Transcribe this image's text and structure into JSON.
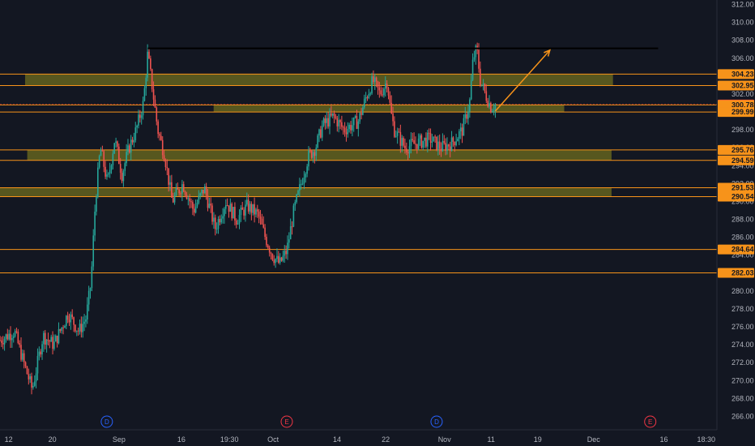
{
  "chart_data": {
    "type": "candlestick",
    "ylim": [
      264.5,
      312.5
    ],
    "y_ticks": [
      266,
      268,
      270,
      272,
      274,
      276,
      278,
      280,
      282,
      284,
      286,
      288,
      290,
      292,
      294,
      296,
      298,
      300,
      302,
      304,
      306,
      308,
      310,
      312
    ],
    "x_ticks": [
      {
        "label": "12",
        "pos": 0.012
      },
      {
        "label": "20",
        "pos": 0.073
      },
      {
        "label": "Sep",
        "pos": 0.166
      },
      {
        "label": "16",
        "pos": 0.253
      },
      {
        "label": "19:30",
        "pos": 0.32
      },
      {
        "label": "Oct",
        "pos": 0.381
      },
      {
        "label": "14",
        "pos": 0.47
      },
      {
        "label": "22",
        "pos": 0.538
      },
      {
        "label": "Nov",
        "pos": 0.62
      },
      {
        "label": "11",
        "pos": 0.685
      },
      {
        "label": "19",
        "pos": 0.75
      },
      {
        "label": "Dec",
        "pos": 0.828
      },
      {
        "label": "16",
        "pos": 0.926
      },
      {
        "label": "18:30",
        "pos": 0.985
      }
    ],
    "price_lines": [
      {
        "value": 304.23,
        "label": "304.23",
        "color": "#f7931a"
      },
      {
        "value": 302.95,
        "label": "302.95",
        "color": "#f7931a"
      },
      {
        "value": 300.83,
        "label": "300.83",
        "color": "#f23645"
      },
      {
        "value": 300.78,
        "label": "300.78",
        "color": "#f7931a"
      },
      {
        "value": 299.99,
        "label": "299.99",
        "color": "#f7931a"
      },
      {
        "value": 295.76,
        "label": "295.76",
        "color": "#f7931a"
      },
      {
        "value": 294.59,
        "label": "294.59",
        "color": "#f7931a"
      },
      {
        "value": 291.53,
        "label": "291.53",
        "color": "#f7931a"
      },
      {
        "value": 290.54,
        "label": "290.54",
        "color": "#f7931a"
      },
      {
        "value": 284.64,
        "label": "284.64",
        "color": "#f7931a"
      },
      {
        "value": 282.03,
        "label": "282.03",
        "color": "#f7931a"
      }
    ],
    "zones": [
      {
        "top": 304.23,
        "bottom": 302.95,
        "x0": 0.035,
        "x1": 0.855
      },
      {
        "top": 300.83,
        "bottom": 299.99,
        "x0": 0.298,
        "x1": 0.787
      },
      {
        "top": 295.76,
        "bottom": 294.59,
        "x0": 0.038,
        "x1": 0.853
      },
      {
        "top": 291.53,
        "bottom": 290.54,
        "x0": 0.0,
        "x1": 0.853
      }
    ],
    "resistance_line": {
      "value": 307.1,
      "x0": 0.206,
      "x1": 0.918
    },
    "projection_arrow": {
      "from": [
        0.691,
        300.1
      ],
      "to": [
        0.767,
        306.9
      ]
    },
    "event_markers": [
      {
        "label": "D",
        "pos": 0.149,
        "kind": "dividend"
      },
      {
        "label": "E",
        "pos": 0.4,
        "kind": "earnings"
      },
      {
        "label": "D",
        "pos": 0.609,
        "kind": "dividend"
      },
      {
        "label": "E",
        "pos": 0.907,
        "kind": "earnings"
      }
    ],
    "price_path": [
      [
        0.0,
        274.5
      ],
      [
        0.02,
        275.5
      ],
      [
        0.035,
        271.5
      ],
      [
        0.045,
        269.0
      ],
      [
        0.06,
        275.0
      ],
      [
        0.075,
        274.0
      ],
      [
        0.095,
        277.5
      ],
      [
        0.11,
        275.5
      ],
      [
        0.12,
        277.0
      ],
      [
        0.127,
        281.0
      ],
      [
        0.133,
        290.0
      ],
      [
        0.14,
        296.0
      ],
      [
        0.15,
        292.0
      ],
      [
        0.16,
        297.0
      ],
      [
        0.17,
        293.0
      ],
      [
        0.18,
        296.0
      ],
      [
        0.19,
        298.0
      ],
      [
        0.2,
        301.0
      ],
      [
        0.206,
        306.5
      ],
      [
        0.212,
        303.0
      ],
      [
        0.22,
        298.0
      ],
      [
        0.23,
        295.0
      ],
      [
        0.24,
        290.0
      ],
      [
        0.255,
        292.0
      ],
      [
        0.27,
        289.0
      ],
      [
        0.285,
        291.5
      ],
      [
        0.3,
        287.0
      ],
      [
        0.315,
        290.0
      ],
      [
        0.33,
        288.0
      ],
      [
        0.345,
        289.5
      ],
      [
        0.36,
        288.5
      ],
      [
        0.37,
        286.0
      ],
      [
        0.38,
        284.0
      ],
      [
        0.39,
        283.0
      ],
      [
        0.4,
        284.5
      ],
      [
        0.41,
        289.0
      ],
      [
        0.42,
        292.0
      ],
      [
        0.43,
        295.0
      ],
      [
        0.44,
        296.0
      ],
      [
        0.45,
        298.5
      ],
      [
        0.465,
        299.5
      ],
      [
        0.48,
        298.0
      ],
      [
        0.5,
        299.0
      ],
      [
        0.51,
        301.5
      ],
      [
        0.52,
        303.5
      ],
      [
        0.53,
        302.0
      ],
      [
        0.54,
        303.5
      ],
      [
        0.545,
        300.0
      ],
      [
        0.55,
        298.0
      ],
      [
        0.565,
        296.0
      ],
      [
        0.58,
        296.5
      ],
      [
        0.6,
        297.0
      ],
      [
        0.615,
        296.0
      ],
      [
        0.63,
        296.5
      ],
      [
        0.645,
        298.0
      ],
      [
        0.655,
        301.0
      ],
      [
        0.66,
        306.0
      ],
      [
        0.665,
        307.0
      ],
      [
        0.67,
        303.5
      ],
      [
        0.677,
        302.0
      ],
      [
        0.685,
        300.5
      ],
      [
        0.691,
        300.8
      ]
    ]
  }
}
